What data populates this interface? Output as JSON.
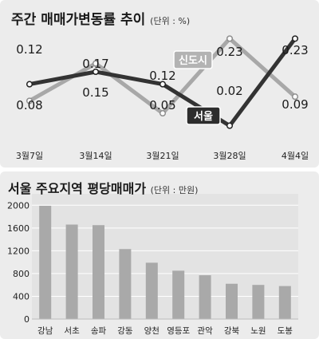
{
  "colors": {
    "seoul_line": "#333333",
    "newtown_line": "#a8a8a8",
    "bar": "#a9a9a9",
    "panel_bg": "#ececec",
    "plot_bg": "#e3e3e3",
    "grid": "#ffffff"
  },
  "chart_data": [
    {
      "type": "line",
      "title": "주간 매매가변동률 추이",
      "unit_label": "(단위 : %)",
      "categories": [
        "3월7일",
        "3월14일",
        "3월21일",
        "3월28일",
        "4월4일"
      ],
      "series": [
        {
          "name": "서울",
          "values": [
            0.12,
            0.15,
            0.12,
            0.02,
            0.23
          ]
        },
        {
          "name": "신도시",
          "values": [
            0.08,
            0.17,
            0.05,
            0.23,
            0.09
          ]
        }
      ],
      "ylim": [
        0,
        0.25
      ],
      "grid": false,
      "legend": "inline-labels"
    },
    {
      "type": "bar",
      "title": "서울 주요지역 평당매매가",
      "unit_label": "(단위 : 만원)",
      "categories": [
        "강남",
        "서초",
        "송파",
        "강동",
        "양천",
        "영등포",
        "관악",
        "강북",
        "노원",
        "도봉"
      ],
      "values": [
        1990,
        1660,
        1650,
        1230,
        990,
        850,
        770,
        620,
        600,
        580
      ],
      "yticks": [
        0,
        400,
        800,
        1200,
        1600,
        2000
      ],
      "ylim": [
        0,
        2200
      ],
      "grid": true
    }
  ]
}
